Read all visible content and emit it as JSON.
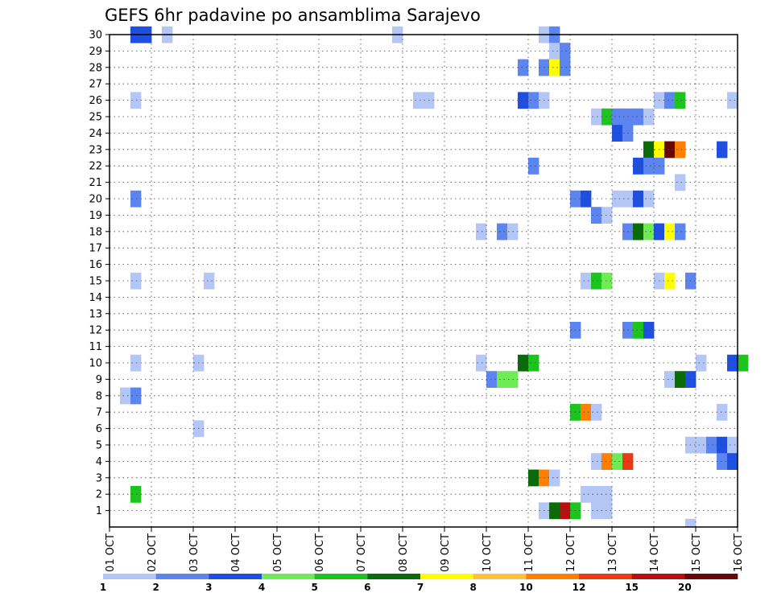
{
  "chart_data": {
    "type": "heatmap",
    "title": "GEFS 6hr padavine po ansamblima Sarajevo",
    "x_tick_labels": [
      "01 OCT",
      "02 OCT",
      "03 OCT",
      "04 OCT",
      "05 OCT",
      "06 OCT",
      "07 OCT",
      "08 OCT",
      "09 OCT",
      "10 OCT",
      "11 OCT",
      "12 OCT",
      "13 OCT",
      "14 OCT",
      "15 OCT",
      "16 OCT"
    ],
    "y_tick_labels": [
      "1",
      "2",
      "3",
      "4",
      "5",
      "6",
      "7",
      "8",
      "9",
      "10",
      "11",
      "12",
      "13",
      "14",
      "15",
      "16",
      "17",
      "18",
      "19",
      "20",
      "21",
      "22",
      "23",
      "24",
      "25",
      "26",
      "27",
      "28",
      "29",
      "30"
    ],
    "x_unit": "6-hour step from 01 OCT 00Z (4 steps per day)",
    "y_unit": "ensemble member",
    "grid": true,
    "colorbar": {
      "placement": "bottom",
      "labels": [
        "1",
        "2",
        "3",
        "4",
        "5",
        "6",
        "7",
        "8",
        "10",
        "12",
        "15",
        "20"
      ],
      "colors": [
        "#b3c6f5",
        "#5c85ef",
        "#1f4fe0",
        "#6fec55",
        "#1ec41e",
        "#0b6b0b",
        "#ffff00",
        "#ffc040",
        "#ff8000",
        "#e83a14",
        "#b81010",
        "#6a0606"
      ]
    },
    "points": [
      [
        2,
        30,
        "#1f4fe0"
      ],
      [
        3,
        30,
        "#1f4fe0"
      ],
      [
        5,
        30,
        "#b3c6f5"
      ],
      [
        27,
        30,
        "#b3c6f5"
      ],
      [
        41,
        30,
        "#b3c6f5"
      ],
      [
        42,
        30,
        "#5c85ef"
      ],
      [
        42,
        29,
        "#b3c6f5"
      ],
      [
        43,
        29,
        "#5c85ef"
      ],
      [
        39,
        28,
        "#5c85ef"
      ],
      [
        41,
        28,
        "#5c85ef"
      ],
      [
        42,
        28,
        "#ffff00"
      ],
      [
        43,
        28,
        "#5c85ef"
      ],
      [
        2,
        26,
        "#b3c6f5"
      ],
      [
        29,
        26,
        "#b3c6f5"
      ],
      [
        30,
        26,
        "#b3c6f5"
      ],
      [
        39,
        26,
        "#1f4fe0"
      ],
      [
        40,
        26,
        "#5c85ef"
      ],
      [
        41,
        26,
        "#b3c6f5"
      ],
      [
        52,
        26,
        "#b3c6f5"
      ],
      [
        53,
        26,
        "#5c85ef"
      ],
      [
        54,
        26,
        "#1ec41e"
      ],
      [
        59,
        26,
        "#b3c6f5"
      ],
      [
        46,
        25,
        "#b3c6f5"
      ],
      [
        47,
        25,
        "#1ec41e"
      ],
      [
        48,
        25,
        "#5c85ef"
      ],
      [
        49,
        25,
        "#5c85ef"
      ],
      [
        50,
        25,
        "#5c85ef"
      ],
      [
        51,
        25,
        "#b3c6f5"
      ],
      [
        48,
        24,
        "#1f4fe0"
      ],
      [
        49,
        24,
        "#5c85ef"
      ],
      [
        51,
        23,
        "#0b6b0b"
      ],
      [
        52,
        23,
        "#ffff00"
      ],
      [
        53,
        23,
        "#6a0606"
      ],
      [
        54,
        23,
        "#ff8000"
      ],
      [
        58,
        23,
        "#1f4fe0"
      ],
      [
        40,
        22,
        "#5c85ef"
      ],
      [
        50,
        22,
        "#1f4fe0"
      ],
      [
        51,
        22,
        "#5c85ef"
      ],
      [
        52,
        22,
        "#5c85ef"
      ],
      [
        54,
        21,
        "#b3c6f5"
      ],
      [
        2,
        20,
        "#5c85ef"
      ],
      [
        44,
        20,
        "#5c85ef"
      ],
      [
        45,
        20,
        "#1f4fe0"
      ],
      [
        48,
        20,
        "#b3c6f5"
      ],
      [
        49,
        20,
        "#b3c6f5"
      ],
      [
        50,
        20,
        "#1f4fe0"
      ],
      [
        51,
        20,
        "#b3c6f5"
      ],
      [
        46,
        19,
        "#5c85ef"
      ],
      [
        47,
        19,
        "#b3c6f5"
      ],
      [
        35,
        18,
        "#b3c6f5"
      ],
      [
        37,
        18,
        "#5c85ef"
      ],
      [
        38,
        18,
        "#b3c6f5"
      ],
      [
        49,
        18,
        "#5c85ef"
      ],
      [
        50,
        18,
        "#0b6b0b"
      ],
      [
        51,
        18,
        "#6fec55"
      ],
      [
        52,
        18,
        "#1f4fe0"
      ],
      [
        53,
        18,
        "#ffff00"
      ],
      [
        54,
        18,
        "#5c85ef"
      ],
      [
        2,
        15,
        "#b3c6f5"
      ],
      [
        9,
        15,
        "#b3c6f5"
      ],
      [
        45,
        15,
        "#b3c6f5"
      ],
      [
        46,
        15,
        "#1ec41e"
      ],
      [
        47,
        15,
        "#6fec55"
      ],
      [
        52,
        15,
        "#b3c6f5"
      ],
      [
        53,
        15,
        "#ffff00"
      ],
      [
        55,
        15,
        "#5c85ef"
      ],
      [
        44,
        12,
        "#5c85ef"
      ],
      [
        49,
        12,
        "#5c85ef"
      ],
      [
        50,
        12,
        "#1ec41e"
      ],
      [
        51,
        12,
        "#1f4fe0"
      ],
      [
        2,
        10,
        "#b3c6f5"
      ],
      [
        8,
        10,
        "#b3c6f5"
      ],
      [
        35,
        10,
        "#b3c6f5"
      ],
      [
        39,
        10,
        "#0b6b0b"
      ],
      [
        40,
        10,
        "#1ec41e"
      ],
      [
        56,
        10,
        "#b3c6f5"
      ],
      [
        59,
        10,
        "#1f4fe0"
      ],
      [
        60,
        10,
        "#1ec41e"
      ],
      [
        36,
        9,
        "#5c85ef"
      ],
      [
        37,
        9,
        "#6fec55"
      ],
      [
        38,
        9,
        "#6fec55"
      ],
      [
        53,
        9,
        "#b3c6f5"
      ],
      [
        54,
        9,
        "#0b6b0b"
      ],
      [
        55,
        9,
        "#1f4fe0"
      ],
      [
        1,
        8,
        "#b3c6f5"
      ],
      [
        2,
        8,
        "#5c85ef"
      ],
      [
        44,
        7,
        "#1ec41e"
      ],
      [
        45,
        7,
        "#ff8000"
      ],
      [
        46,
        7,
        "#b3c6f5"
      ],
      [
        58,
        7,
        "#b3c6f5"
      ],
      [
        8,
        6,
        "#b3c6f5"
      ],
      [
        55,
        5,
        "#b3c6f5"
      ],
      [
        56,
        5,
        "#b3c6f5"
      ],
      [
        57,
        5,
        "#5c85ef"
      ],
      [
        58,
        5,
        "#1f4fe0"
      ],
      [
        59,
        5,
        "#b3c6f5"
      ],
      [
        46,
        4,
        "#b3c6f5"
      ],
      [
        47,
        4,
        "#ff8000"
      ],
      [
        48,
        4,
        "#6fec55"
      ],
      [
        49,
        4,
        "#e83a14"
      ],
      [
        58,
        4,
        "#5c85ef"
      ],
      [
        59,
        4,
        "#1f4fe0"
      ],
      [
        40,
        3,
        "#0b6b0b"
      ],
      [
        41,
        3,
        "#ff8000"
      ],
      [
        42,
        3,
        "#b3c6f5"
      ],
      [
        2,
        2,
        "#1ec41e"
      ],
      [
        45,
        2,
        "#b3c6f5"
      ],
      [
        46,
        2,
        "#b3c6f5"
      ],
      [
        47,
        2,
        "#b3c6f5"
      ],
      [
        41,
        1,
        "#b3c6f5"
      ],
      [
        42,
        1,
        "#0b6b0b"
      ],
      [
        43,
        1,
        "#b81010"
      ],
      [
        44,
        1,
        "#1ec41e"
      ],
      [
        46,
        1,
        "#b3c6f5"
      ],
      [
        47,
        1,
        "#b3c6f5"
      ],
      [
        55,
        0,
        "#b3c6f5"
      ]
    ]
  }
}
